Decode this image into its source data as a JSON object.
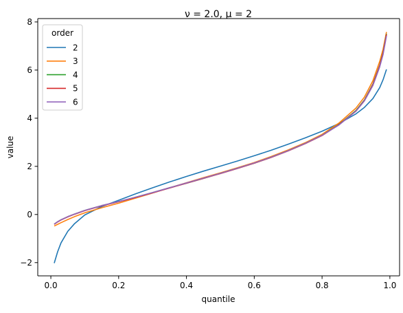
{
  "chart_data": {
    "type": "line",
    "title": "ν = 2.0, μ = 2",
    "xlabel": "quantile",
    "ylabel": "value",
    "xlim": [
      -0.0386,
      1.0286
    ],
    "ylim": [
      -2.55,
      8.14
    ],
    "xticks": [
      0.0,
      0.2,
      0.4,
      0.6,
      0.8,
      1.0
    ],
    "xtick_labels": [
      "0.0",
      "0.2",
      "0.4",
      "0.6",
      "0.8",
      "1.0"
    ],
    "yticks": [
      -2,
      0,
      2,
      4,
      6,
      8
    ],
    "ytick_labels": [
      "−2",
      "0",
      "2",
      "4",
      "6",
      "8"
    ],
    "grid": false,
    "legend": {
      "title": "order",
      "placement": "upper left"
    },
    "x": [
      0.01,
      0.02,
      0.03,
      0.05,
      0.07,
      0.1,
      0.15,
      0.2,
      0.25,
      0.3,
      0.35,
      0.4,
      0.45,
      0.5,
      0.55,
      0.6,
      0.65,
      0.7,
      0.75,
      0.8,
      0.85,
      0.9,
      0.925,
      0.95,
      0.97,
      0.98,
      0.99
    ],
    "series": [
      {
        "name": "2",
        "color": "#1f77b4",
        "values": [
          -2.02,
          -1.55,
          -1.18,
          -0.7,
          -0.38,
          -0.02,
          0.33,
          0.59,
          0.86,
          1.11,
          1.35,
          1.58,
          1.8,
          2.01,
          2.22,
          2.44,
          2.67,
          2.92,
          3.18,
          3.46,
          3.78,
          4.18,
          4.45,
          4.82,
          5.27,
          5.6,
          6.03
        ]
      },
      {
        "name": "3",
        "color": "#ff7f0e",
        "values": [
          -0.48,
          -0.41,
          -0.34,
          -0.21,
          -0.09,
          0.07,
          0.28,
          0.47,
          0.68,
          0.89,
          1.11,
          1.32,
          1.53,
          1.73,
          1.94,
          2.16,
          2.41,
          2.68,
          2.98,
          3.33,
          3.8,
          4.42,
          4.88,
          5.56,
          6.36,
          6.87,
          7.58
        ]
      },
      {
        "name": "4",
        "color": "#2ca02c",
        "values": [
          -0.4,
          -0.3,
          -0.22,
          -0.09,
          0.02,
          0.17,
          0.37,
          0.53,
          0.72,
          0.91,
          1.11,
          1.3,
          1.5,
          1.71,
          1.92,
          2.13,
          2.38,
          2.65,
          2.95,
          3.29,
          3.74,
          4.32,
          4.76,
          5.42,
          6.2,
          6.72,
          7.5
        ]
      },
      {
        "name": "5",
        "color": "#d62728",
        "values": [
          -0.41,
          -0.31,
          -0.23,
          -0.1,
          0.01,
          0.16,
          0.36,
          0.53,
          0.71,
          0.9,
          1.1,
          1.3,
          1.5,
          1.7,
          1.91,
          2.13,
          2.37,
          2.64,
          2.94,
          3.28,
          3.73,
          4.3,
          4.74,
          5.4,
          6.18,
          6.7,
          7.48
        ]
      },
      {
        "name": "6",
        "color": "#9467bd",
        "values": [
          -0.4,
          -0.3,
          -0.22,
          -0.09,
          0.02,
          0.17,
          0.37,
          0.54,
          0.72,
          0.91,
          1.11,
          1.31,
          1.51,
          1.71,
          1.92,
          2.14,
          2.38,
          2.65,
          2.95,
          3.29,
          3.72,
          4.29,
          4.72,
          5.36,
          6.13,
          6.65,
          7.42
        ]
      }
    ]
  }
}
